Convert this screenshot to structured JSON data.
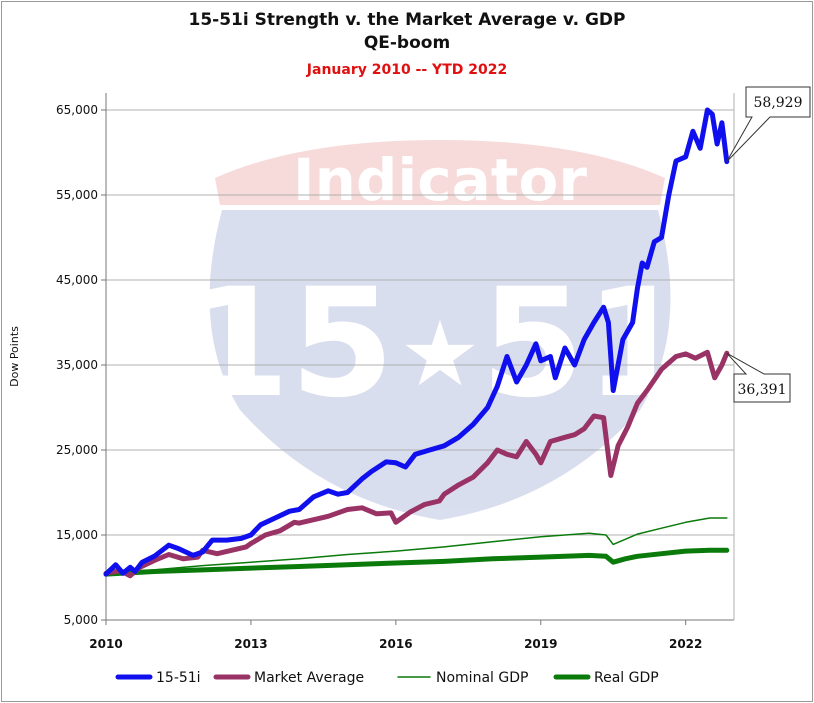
{
  "chart_data": {
    "type": "line",
    "title": "15-51i Strength v. the Market Average v. GDP",
    "subtitle": "QE-boom",
    "date_range": "January 2010 -- YTD 2022",
    "ylabel": "Dow Points",
    "xlabel": "",
    "xlim": [
      2010.0,
      2023.0
    ],
    "ylim": [
      5000,
      67000
    ],
    "x_ticks": [
      2010,
      2013,
      2016,
      2019,
      2022
    ],
    "y_ticks": [
      5000,
      15000,
      25000,
      35000,
      45000,
      55000,
      65000
    ],
    "y_tick_labels": [
      "5,000",
      "15,000",
      "25,000",
      "35,000",
      "45,000",
      "55,000",
      "65,000"
    ],
    "grid": true,
    "legend": "bottom",
    "watermark": {
      "word": "Indicator",
      "number": "15",
      "number2": "51"
    },
    "callouts": [
      {
        "series": "15-51i",
        "label": "58,929"
      },
      {
        "series": "Market Average",
        "label": "36,391"
      }
    ],
    "series": [
      {
        "name": "15-51i",
        "color": "#1010ee",
        "width": 5,
        "points": [
          [
            2010.0,
            10400
          ],
          [
            2010.2,
            11500
          ],
          [
            2010.35,
            10500
          ],
          [
            2010.5,
            11200
          ],
          [
            2010.6,
            10700
          ],
          [
            2010.75,
            11800
          ],
          [
            2011.0,
            12500
          ],
          [
            2011.3,
            13800
          ],
          [
            2011.5,
            13400
          ],
          [
            2011.8,
            12600
          ],
          [
            2012.0,
            13000
          ],
          [
            2012.2,
            14400
          ],
          [
            2012.5,
            14400
          ],
          [
            2012.8,
            14600
          ],
          [
            2013.0,
            15000
          ],
          [
            2013.2,
            16200
          ],
          [
            2013.5,
            17000
          ],
          [
            2013.8,
            17800
          ],
          [
            2014.0,
            18000
          ],
          [
            2014.3,
            19500
          ],
          [
            2014.6,
            20200
          ],
          [
            2014.8,
            19800
          ],
          [
            2015.0,
            20000
          ],
          [
            2015.3,
            21600
          ],
          [
            2015.5,
            22500
          ],
          [
            2015.8,
            23600
          ],
          [
            2016.0,
            23500
          ],
          [
            2016.2,
            23000
          ],
          [
            2016.4,
            24500
          ],
          [
            2016.7,
            25000
          ],
          [
            2017.0,
            25500
          ],
          [
            2017.3,
            26500
          ],
          [
            2017.6,
            28000
          ],
          [
            2017.9,
            30000
          ],
          [
            2018.1,
            32500
          ],
          [
            2018.3,
            36000
          ],
          [
            2018.5,
            33000
          ],
          [
            2018.7,
            35000
          ],
          [
            2018.9,
            37500
          ],
          [
            2019.0,
            35500
          ],
          [
            2019.2,
            36000
          ],
          [
            2019.3,
            33500
          ],
          [
            2019.5,
            37000
          ],
          [
            2019.7,
            35000
          ],
          [
            2019.9,
            38000
          ],
          [
            2020.1,
            40000
          ],
          [
            2020.3,
            41800
          ],
          [
            2020.4,
            40000
          ],
          [
            2020.5,
            32000
          ],
          [
            2020.7,
            38000
          ],
          [
            2020.9,
            40000
          ],
          [
            2021.0,
            44000
          ],
          [
            2021.1,
            47000
          ],
          [
            2021.2,
            46500
          ],
          [
            2021.35,
            49500
          ],
          [
            2021.5,
            50000
          ],
          [
            2021.65,
            55000
          ],
          [
            2021.8,
            59000
          ],
          [
            2022.0,
            59500
          ],
          [
            2022.15,
            62500
          ],
          [
            2022.3,
            60500
          ],
          [
            2022.45,
            65000
          ],
          [
            2022.55,
            64500
          ],
          [
            2022.65,
            61000
          ],
          [
            2022.75,
            63500
          ],
          [
            2022.85,
            58929
          ]
        ]
      },
      {
        "name": "Market Average",
        "color": "#993366",
        "width": 5,
        "points": [
          [
            2010.0,
            10500
          ],
          [
            2010.3,
            10800
          ],
          [
            2010.5,
            10200
          ],
          [
            2010.7,
            11200
          ],
          [
            2011.0,
            12000
          ],
          [
            2011.3,
            12700
          ],
          [
            2011.6,
            12200
          ],
          [
            2011.9,
            12400
          ],
          [
            2012.0,
            13200
          ],
          [
            2012.3,
            12800
          ],
          [
            2012.6,
            13200
          ],
          [
            2012.9,
            13600
          ],
          [
            2013.0,
            14000
          ],
          [
            2013.3,
            15000
          ],
          [
            2013.6,
            15500
          ],
          [
            2013.9,
            16500
          ],
          [
            2014.0,
            16400
          ],
          [
            2014.3,
            16800
          ],
          [
            2014.6,
            17200
          ],
          [
            2014.9,
            17800
          ],
          [
            2015.0,
            18000
          ],
          [
            2015.3,
            18200
          ],
          [
            2015.6,
            17500
          ],
          [
            2015.9,
            17600
          ],
          [
            2016.0,
            16500
          ],
          [
            2016.3,
            17700
          ],
          [
            2016.6,
            18600
          ],
          [
            2016.9,
            19000
          ],
          [
            2017.0,
            19800
          ],
          [
            2017.3,
            20900
          ],
          [
            2017.6,
            21800
          ],
          [
            2017.9,
            23500
          ],
          [
            2018.1,
            25000
          ],
          [
            2018.3,
            24500
          ],
          [
            2018.5,
            24200
          ],
          [
            2018.7,
            26000
          ],
          [
            2018.9,
            24500
          ],
          [
            2019.0,
            23500
          ],
          [
            2019.2,
            26000
          ],
          [
            2019.5,
            26500
          ],
          [
            2019.7,
            26800
          ],
          [
            2019.9,
            27500
          ],
          [
            2020.1,
            29000
          ],
          [
            2020.3,
            28800
          ],
          [
            2020.45,
            22000
          ],
          [
            2020.6,
            25500
          ],
          [
            2020.8,
            27700
          ],
          [
            2021.0,
            30500
          ],
          [
            2021.2,
            32000
          ],
          [
            2021.5,
            34500
          ],
          [
            2021.8,
            36000
          ],
          [
            2022.0,
            36300
          ],
          [
            2022.2,
            35800
          ],
          [
            2022.45,
            36500
          ],
          [
            2022.6,
            33500
          ],
          [
            2022.75,
            35000
          ],
          [
            2022.85,
            36391
          ]
        ]
      },
      {
        "name": "Nominal GDP",
        "color": "#0a7a0a",
        "width": 1.5,
        "points": [
          [
            2010.0,
            10500
          ],
          [
            2011.0,
            10900
          ],
          [
            2012.0,
            11400
          ],
          [
            2013.0,
            11800
          ],
          [
            2014.0,
            12200
          ],
          [
            2015.0,
            12700
          ],
          [
            2016.0,
            13100
          ],
          [
            2017.0,
            13600
          ],
          [
            2018.0,
            14200
          ],
          [
            2019.0,
            14800
          ],
          [
            2020.0,
            15200
          ],
          [
            2020.35,
            15000
          ],
          [
            2020.5,
            13900
          ],
          [
            2020.75,
            14500
          ],
          [
            2021.0,
            15100
          ],
          [
            2021.5,
            15800
          ],
          [
            2022.0,
            16500
          ],
          [
            2022.5,
            17000
          ],
          [
            2022.85,
            17000
          ]
        ]
      },
      {
        "name": "Real GDP",
        "color": "#0a7a0a",
        "width": 5,
        "points": [
          [
            2010.0,
            10400
          ],
          [
            2011.0,
            10700
          ],
          [
            2012.0,
            10900
          ],
          [
            2013.0,
            11100
          ],
          [
            2014.0,
            11300
          ],
          [
            2015.0,
            11500
          ],
          [
            2016.0,
            11700
          ],
          [
            2017.0,
            11900
          ],
          [
            2018.0,
            12200
          ],
          [
            2019.0,
            12400
          ],
          [
            2020.0,
            12600
          ],
          [
            2020.35,
            12500
          ],
          [
            2020.5,
            11800
          ],
          [
            2020.75,
            12200
          ],
          [
            2021.0,
            12500
          ],
          [
            2021.5,
            12800
          ],
          [
            2022.0,
            13100
          ],
          [
            2022.5,
            13200
          ],
          [
            2022.85,
            13200
          ]
        ]
      }
    ]
  }
}
